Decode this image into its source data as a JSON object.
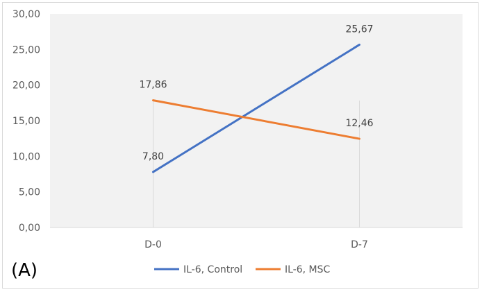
{
  "chart_data": {
    "type": "line",
    "categories": [
      "D-0",
      "D-7"
    ],
    "series": [
      {
        "name": "IL-6, Control",
        "values": [
          7.8,
          25.67
        ],
        "labels": [
          "7,80",
          "25,67"
        ],
        "color": "#4472c4"
      },
      {
        "name": "IL-6, MSC",
        "values": [
          17.86,
          12.46
        ],
        "labels": [
          "17,86",
          "12,46"
        ],
        "color": "#ed7d31"
      }
    ],
    "ylim": [
      0,
      30
    ],
    "yticks": [
      "0,00",
      "5,00",
      "10,00",
      "15,00",
      "20,00",
      "25,00",
      "30,00"
    ],
    "grid": "vertical category lines",
    "legend": "bottom",
    "title": "",
    "xlabel": "",
    "ylabel": ""
  },
  "panel_label": "(A)"
}
